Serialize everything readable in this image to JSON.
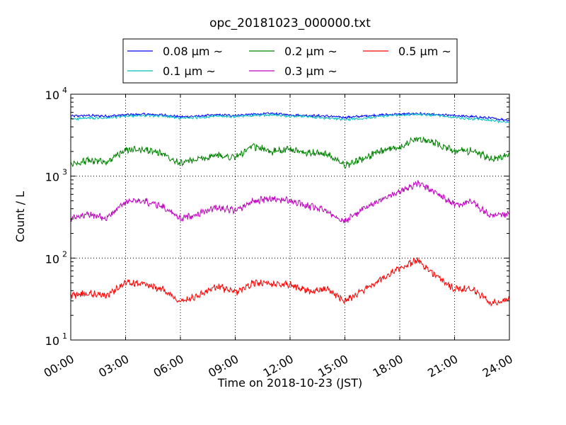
{
  "chart_data": {
    "type": "line",
    "title": "opc_20181023_000000.txt",
    "xlabel": "Time on 2018-10-23 (JST)",
    "ylabel": "Count / L",
    "x_ticks": [
      "00:00",
      "03:00",
      "06:00",
      "09:00",
      "12:00",
      "15:00",
      "18:00",
      "21:00",
      "24:00"
    ],
    "x_tick_hours": [
      0,
      3,
      6,
      9,
      12,
      15,
      18,
      21,
      24
    ],
    "xlim_hours": [
      0,
      24
    ],
    "y_scale": "log",
    "ylim": [
      10,
      10000
    ],
    "y_ticks": [
      {
        "value": 10,
        "base": "10",
        "exp": "1"
      },
      {
        "value": 100,
        "base": "10",
        "exp": "2"
      },
      {
        "value": 1000,
        "base": "10",
        "exp": "3"
      },
      {
        "value": 10000,
        "base": "10",
        "exp": "4"
      }
    ],
    "grid": true,
    "legend_placement": "top-center, above plot",
    "x_hours": [
      0,
      1,
      2,
      3,
      4,
      5,
      6,
      7,
      8,
      9,
      10,
      11,
      12,
      13,
      14,
      15,
      16,
      17,
      18,
      19,
      20,
      21,
      22,
      23,
      24
    ],
    "series": [
      {
        "name": "0.08 μm ~",
        "label_main": "0.08",
        "color": "#0000ff",
        "values": [
          5400,
          5500,
          5400,
          5600,
          5700,
          5600,
          5300,
          5400,
          5600,
          5500,
          5700,
          5800,
          5600,
          5500,
          5400,
          5200,
          5400,
          5600,
          5700,
          5800,
          5600,
          5500,
          5300,
          5100,
          4800
        ]
      },
      {
        "name": "0.1 μm ~",
        "label_main": "0.1",
        "color": "#00bfbf",
        "values": [
          5000,
          5100,
          5100,
          5400,
          5500,
          5400,
          5100,
          5200,
          5400,
          5300,
          5500,
          5600,
          5400,
          5300,
          5100,
          4900,
          5100,
          5400,
          5600,
          5700,
          5500,
          5200,
          5000,
          4800,
          4500
        ]
      },
      {
        "name": "0.2 μm ~",
        "label_main": "0.2",
        "color": "#008000",
        "values": [
          1400,
          1550,
          1500,
          2100,
          2100,
          1900,
          1450,
          1600,
          1800,
          1700,
          2300,
          2000,
          2100,
          1950,
          1850,
          1350,
          1650,
          2000,
          2300,
          2900,
          2500,
          2000,
          2050,
          1600,
          1850
        ]
      },
      {
        "name": "0.3 μm ~",
        "label_main": "0.3",
        "color": "#bf00bf",
        "values": [
          300,
          340,
          310,
          480,
          500,
          430,
          300,
          350,
          420,
          380,
          500,
          530,
          500,
          430,
          380,
          280,
          400,
          510,
          650,
          820,
          620,
          450,
          480,
          320,
          340
        ]
      },
      {
        "name": "0.5 μm ~",
        "label_main": "0.5",
        "color": "#ff0000",
        "values": [
          35,
          37,
          35,
          50,
          48,
          42,
          30,
          35,
          45,
          38,
          50,
          48,
          47,
          40,
          42,
          30,
          40,
          55,
          75,
          95,
          60,
          42,
          42,
          28,
          32
        ]
      }
    ]
  }
}
